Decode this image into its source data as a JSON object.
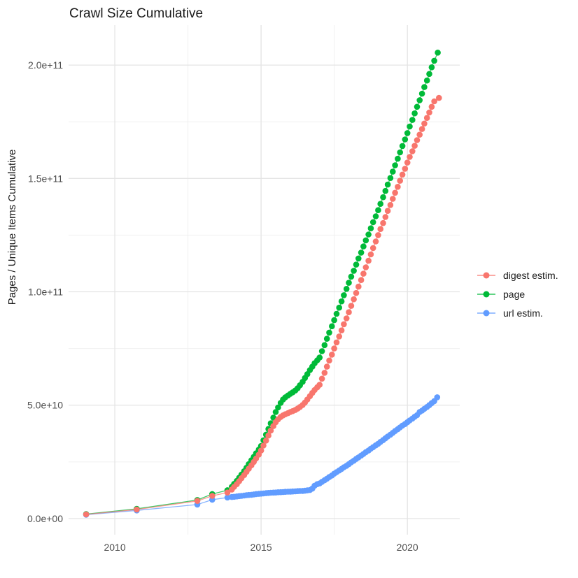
{
  "title": "Crawl Size Cumulative",
  "chart_data": {
    "type": "line",
    "title": "Crawl Size Cumulative",
    "xlabel": "",
    "ylabel": "Pages / Unique Items Cumulative",
    "value_unit": "1e9 pages (values below are in billions)",
    "grid": "on",
    "legend_position": "right",
    "x_domain": [
      2008.42,
      2021.79
    ],
    "y_domain_e9": [
      -7.1,
      217.6
    ],
    "x_ticks": [
      {
        "value": 2010,
        "label": "2010"
      },
      {
        "value": 2015,
        "label": "2015"
      },
      {
        "value": 2020,
        "label": "2020"
      }
    ],
    "x_minor_ticks": [
      2012.5,
      2017.5
    ],
    "y_ticks": [
      {
        "value_e9": 0,
        "label": "0.0e+00"
      },
      {
        "value_e9": 50,
        "label": "5.0e+10"
      },
      {
        "value_e9": 100,
        "label": "1.0e+11"
      },
      {
        "value_e9": 150,
        "label": "1.5e+11"
      },
      {
        "value_e9": 200,
        "label": "2.0e+11"
      }
    ],
    "y_minor_ticks_e9": [
      25,
      75,
      125,
      175
    ],
    "series": [
      {
        "name": "page",
        "color": "#00BA38",
        "points": [
          [
            2009.02,
            2.0
          ],
          [
            2010.75,
            4.3
          ],
          [
            2012.82,
            8.2
          ],
          [
            2013.33,
            10.8
          ],
          [
            2013.85,
            12.5
          ],
          [
            2014.0,
            14.0
          ],
          [
            2014.08,
            15.3
          ],
          [
            2014.17,
            16.6
          ],
          [
            2014.25,
            18.0
          ],
          [
            2014.33,
            19.4
          ],
          [
            2014.42,
            20.9
          ],
          [
            2014.5,
            22.4
          ],
          [
            2014.58,
            24.0
          ],
          [
            2014.67,
            25.7
          ],
          [
            2014.75,
            27.2
          ],
          [
            2014.83,
            28.8
          ],
          [
            2014.92,
            30.4
          ],
          [
            2015.0,
            32.0
          ],
          [
            2015.08,
            34.5
          ],
          [
            2015.17,
            37.0
          ],
          [
            2015.25,
            39.5
          ],
          [
            2015.33,
            42.0
          ],
          [
            2015.42,
            44.5
          ],
          [
            2015.5,
            47.0
          ],
          [
            2015.58,
            49.0
          ],
          [
            2015.67,
            51.0
          ],
          [
            2015.75,
            52.5
          ],
          [
            2015.83,
            53.5
          ],
          [
            2015.92,
            54.3
          ],
          [
            2016.0,
            55.0
          ],
          [
            2016.08,
            55.7
          ],
          [
            2016.17,
            56.5
          ],
          [
            2016.25,
            57.5
          ],
          [
            2016.33,
            58.8
          ],
          [
            2016.42,
            60.3
          ],
          [
            2016.5,
            62.0
          ],
          [
            2016.58,
            63.7
          ],
          [
            2016.67,
            65.5
          ],
          [
            2016.75,
            67.0
          ],
          [
            2016.83,
            68.5
          ],
          [
            2016.92,
            69.8
          ],
          [
            2017.0,
            71.0
          ],
          [
            2017.08,
            73.8
          ],
          [
            2017.17,
            76.5
          ],
          [
            2017.25,
            79.3
          ],
          [
            2017.33,
            82.0
          ],
          [
            2017.42,
            84.8
          ],
          [
            2017.5,
            87.5
          ],
          [
            2017.58,
            90.3
          ],
          [
            2017.67,
            93.0
          ],
          [
            2017.75,
            95.8
          ],
          [
            2017.83,
            98.5
          ],
          [
            2017.92,
            101.3
          ],
          [
            2018.0,
            104.0
          ],
          [
            2018.08,
            106.7
          ],
          [
            2018.17,
            109.3
          ],
          [
            2018.25,
            112.0
          ],
          [
            2018.33,
            114.7
          ],
          [
            2018.42,
            117.3
          ],
          [
            2018.5,
            120.0
          ],
          [
            2018.58,
            122.7
          ],
          [
            2018.67,
            125.3
          ],
          [
            2018.75,
            128.0
          ],
          [
            2018.83,
            130.7
          ],
          [
            2018.92,
            133.3
          ],
          [
            2019.0,
            136.0
          ],
          [
            2019.08,
            138.8
          ],
          [
            2019.17,
            141.7
          ],
          [
            2019.25,
            144.5
          ],
          [
            2019.33,
            147.3
          ],
          [
            2019.42,
            150.2
          ],
          [
            2019.5,
            153.0
          ],
          [
            2019.58,
            155.8
          ],
          [
            2019.67,
            158.7
          ],
          [
            2019.75,
            161.5
          ],
          [
            2019.83,
            164.3
          ],
          [
            2019.92,
            167.2
          ],
          [
            2020.0,
            170.0
          ],
          [
            2020.08,
            172.9
          ],
          [
            2020.17,
            175.8
          ],
          [
            2020.25,
            178.7
          ],
          [
            2020.33,
            181.6
          ],
          [
            2020.42,
            184.5
          ],
          [
            2020.5,
            187.4
          ],
          [
            2020.58,
            190.3
          ],
          [
            2020.67,
            193.2
          ],
          [
            2020.75,
            196.1
          ],
          [
            2020.83,
            199.0
          ],
          [
            2020.92,
            201.9
          ],
          [
            2021.04,
            205.5
          ]
        ]
      },
      {
        "name": "url estim.",
        "color": "#619CFF",
        "points": [
          [
            2009.02,
            1.7
          ],
          [
            2010.75,
            3.6
          ],
          [
            2012.82,
            6.2
          ],
          [
            2013.33,
            8.3
          ],
          [
            2013.85,
            9.3
          ],
          [
            2014.0,
            9.5
          ],
          [
            2014.08,
            9.6
          ],
          [
            2014.17,
            9.75
          ],
          [
            2014.25,
            9.9
          ],
          [
            2014.33,
            10.0
          ],
          [
            2014.42,
            10.15
          ],
          [
            2014.5,
            10.3
          ],
          [
            2014.58,
            10.4
          ],
          [
            2014.67,
            10.5
          ],
          [
            2014.75,
            10.65
          ],
          [
            2014.83,
            10.8
          ],
          [
            2014.92,
            10.9
          ],
          [
            2015.0,
            11.0
          ],
          [
            2015.08,
            11.1
          ],
          [
            2015.17,
            11.2
          ],
          [
            2015.25,
            11.3
          ],
          [
            2015.33,
            11.4
          ],
          [
            2015.42,
            11.45
          ],
          [
            2015.5,
            11.5
          ],
          [
            2015.58,
            11.6
          ],
          [
            2015.67,
            11.65
          ],
          [
            2015.75,
            11.7
          ],
          [
            2015.83,
            11.8
          ],
          [
            2015.92,
            11.85
          ],
          [
            2016.0,
            11.9
          ],
          [
            2016.08,
            11.95
          ],
          [
            2016.17,
            12.0
          ],
          [
            2016.25,
            12.1
          ],
          [
            2016.33,
            12.15
          ],
          [
            2016.42,
            12.2
          ],
          [
            2016.5,
            12.3
          ],
          [
            2016.58,
            12.45
          ],
          [
            2016.67,
            12.6
          ],
          [
            2016.75,
            13.2
          ],
          [
            2016.83,
            14.5
          ],
          [
            2016.92,
            15.2
          ],
          [
            2017.0,
            15.5
          ],
          [
            2017.08,
            16.2
          ],
          [
            2017.17,
            16.9
          ],
          [
            2017.25,
            17.6
          ],
          [
            2017.33,
            18.3
          ],
          [
            2017.42,
            19.0
          ],
          [
            2017.5,
            19.8
          ],
          [
            2017.58,
            20.5
          ],
          [
            2017.67,
            21.2
          ],
          [
            2017.75,
            21.9
          ],
          [
            2017.83,
            22.6
          ],
          [
            2017.92,
            23.3
          ],
          [
            2018.0,
            24.0
          ],
          [
            2018.08,
            24.8
          ],
          [
            2018.17,
            25.5
          ],
          [
            2018.25,
            26.3
          ],
          [
            2018.33,
            27.0
          ],
          [
            2018.42,
            27.8
          ],
          [
            2018.5,
            28.5
          ],
          [
            2018.58,
            29.3
          ],
          [
            2018.67,
            30.0
          ],
          [
            2018.75,
            30.8
          ],
          [
            2018.83,
            31.5
          ],
          [
            2018.92,
            32.3
          ],
          [
            2019.0,
            33.0
          ],
          [
            2019.08,
            33.8
          ],
          [
            2019.17,
            34.6
          ],
          [
            2019.25,
            35.4
          ],
          [
            2019.33,
            36.2
          ],
          [
            2019.42,
            37.0
          ],
          [
            2019.5,
            37.8
          ],
          [
            2019.58,
            38.6
          ],
          [
            2019.67,
            39.4
          ],
          [
            2019.75,
            40.2
          ],
          [
            2019.83,
            41.0
          ],
          [
            2019.92,
            41.7
          ],
          [
            2020.0,
            42.5
          ],
          [
            2020.08,
            43.3
          ],
          [
            2020.17,
            44.1
          ],
          [
            2020.25,
            44.9
          ],
          [
            2020.33,
            45.6
          ],
          [
            2020.42,
            47.0
          ],
          [
            2020.5,
            47.6
          ],
          [
            2020.58,
            48.4
          ],
          [
            2020.67,
            49.2
          ],
          [
            2020.75,
            50.0
          ],
          [
            2020.83,
            50.9
          ],
          [
            2020.92,
            51.8
          ],
          [
            2021.02,
            53.5
          ]
        ]
      },
      {
        "name": "digest estim.",
        "color": "#F8766D",
        "points": [
          [
            2009.02,
            1.85
          ],
          [
            2010.75,
            4.0
          ],
          [
            2012.82,
            7.8
          ],
          [
            2013.33,
            10.0
          ],
          [
            2013.85,
            11.5
          ],
          [
            2014.0,
            12.8
          ],
          [
            2014.08,
            14.0
          ],
          [
            2014.17,
            15.2
          ],
          [
            2014.25,
            16.5
          ],
          [
            2014.33,
            17.8
          ],
          [
            2014.42,
            19.2
          ],
          [
            2014.5,
            20.6
          ],
          [
            2014.58,
            22.0
          ],
          [
            2014.67,
            23.5
          ],
          [
            2014.75,
            25.0
          ],
          [
            2014.83,
            26.5
          ],
          [
            2014.92,
            28.2
          ],
          [
            2015.0,
            30.0
          ],
          [
            2015.08,
            32.2
          ],
          [
            2015.17,
            34.4
          ],
          [
            2015.25,
            36.6
          ],
          [
            2015.33,
            38.8
          ],
          [
            2015.42,
            40.8
          ],
          [
            2015.5,
            42.5
          ],
          [
            2015.58,
            43.8
          ],
          [
            2015.67,
            44.8
          ],
          [
            2015.75,
            45.5
          ],
          [
            2015.83,
            46.0
          ],
          [
            2015.92,
            46.5
          ],
          [
            2016.0,
            47.0
          ],
          [
            2016.08,
            47.4
          ],
          [
            2016.17,
            47.9
          ],
          [
            2016.25,
            48.5
          ],
          [
            2016.33,
            49.2
          ],
          [
            2016.42,
            50.1
          ],
          [
            2016.5,
            51.2
          ],
          [
            2016.58,
            52.5
          ],
          [
            2016.67,
            54.0
          ],
          [
            2016.75,
            55.4
          ],
          [
            2016.83,
            56.7
          ],
          [
            2016.92,
            57.9
          ],
          [
            2017.0,
            59.0
          ],
          [
            2017.08,
            61.7
          ],
          [
            2017.17,
            64.3
          ],
          [
            2017.25,
            67.0
          ],
          [
            2017.33,
            69.7
          ],
          [
            2017.42,
            72.3
          ],
          [
            2017.5,
            75.0
          ],
          [
            2017.58,
            77.7
          ],
          [
            2017.67,
            80.3
          ],
          [
            2017.75,
            83.0
          ],
          [
            2017.83,
            85.7
          ],
          [
            2017.92,
            88.3
          ],
          [
            2018.0,
            91.0
          ],
          [
            2018.08,
            93.8
          ],
          [
            2018.17,
            96.7
          ],
          [
            2018.25,
            99.5
          ],
          [
            2018.33,
            102.3
          ],
          [
            2018.42,
            105.2
          ],
          [
            2018.5,
            108.0
          ],
          [
            2018.58,
            110.8
          ],
          [
            2018.67,
            113.7
          ],
          [
            2018.75,
            116.5
          ],
          [
            2018.83,
            119.3
          ],
          [
            2018.92,
            122.2
          ],
          [
            2019.0,
            125.0
          ],
          [
            2019.08,
            127.7
          ],
          [
            2019.17,
            130.3
          ],
          [
            2019.25,
            133.0
          ],
          [
            2019.33,
            135.7
          ],
          [
            2019.42,
            138.3
          ],
          [
            2019.5,
            141.0
          ],
          [
            2019.58,
            143.7
          ],
          [
            2019.67,
            146.3
          ],
          [
            2019.75,
            149.0
          ],
          [
            2019.83,
            151.7
          ],
          [
            2019.92,
            154.3
          ],
          [
            2020.0,
            157.0
          ],
          [
            2020.08,
            159.5
          ],
          [
            2020.17,
            162.0
          ],
          [
            2020.25,
            164.4
          ],
          [
            2020.33,
            166.9
          ],
          [
            2020.42,
            169.3
          ],
          [
            2020.5,
            171.8
          ],
          [
            2020.58,
            174.2
          ],
          [
            2020.67,
            176.7
          ],
          [
            2020.75,
            179.1
          ],
          [
            2020.83,
            181.6
          ],
          [
            2020.92,
            184.0
          ],
          [
            2021.08,
            185.5
          ]
        ]
      }
    ],
    "legend": {
      "items": [
        {
          "label": "digest estim.",
          "color": "#F8766D"
        },
        {
          "label": "page",
          "color": "#00BA38"
        },
        {
          "label": "url estim.",
          "color": "#619CFF"
        }
      ]
    },
    "colors": {
      "grid_major": "#e4e4e4",
      "grid_minor": "#f0f0f0",
      "axis_text": "#4d4d4d",
      "text": "#1a1a1a",
      "background": "#ffffff"
    }
  }
}
